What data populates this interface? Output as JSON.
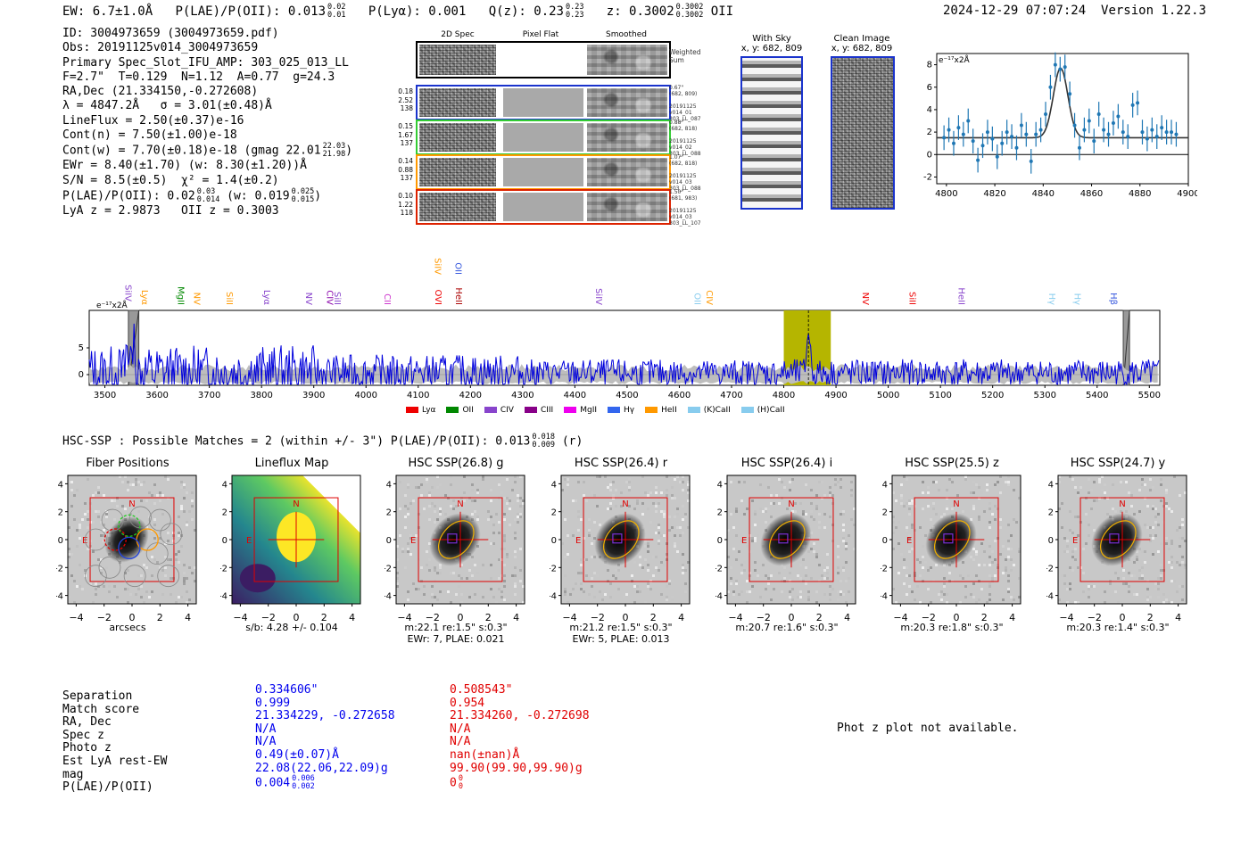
{
  "header": {
    "ew_text": "EW: 6.7±1.0Å",
    "plae_label": "P(LAE)/P(OII): 0.013",
    "plae_up": "0.02",
    "plae_lo": "0.01",
    "plya_text": "P(Lyα): 0.001",
    "qz_label": "Q(z): 0.23",
    "qz_up": "0.23",
    "qz_lo": "0.23",
    "z_label": "z: 0.3002",
    "z_up": "0.3002",
    "z_lo": "0.3002",
    "z_line": "OII",
    "timestamp": "2024-12-29 07:07:24",
    "version": "Version 1.22.3"
  },
  "info": {
    "l1": "ID: 3004973659 (3004973659.pdf)",
    "l2": "Obs: 20191125v014_3004973659",
    "l3": "Primary Spec_Slot_IFU_AMP: 303_025_013_LL",
    "l4": "F=2.7\"  T=0.129  N=1.12  A=0.77  g=24.3",
    "l5": "RA,Dec (21.334150,-0.272608)",
    "l6": "λ = 4847.2Å   σ = 3.01(±0.48)Å",
    "l7": "LineFlux = 2.50(±0.37)e-16",
    "l8": "Cont(n) = 7.50(±1.00)e-18",
    "l9": "Cont(w) = 7.70(±0.18)e-18 (gmag 22.01",
    "l9_up": "22.03",
    "l9_lo": "21.98",
    "l10": "EWr = 8.40(±1.70) (w: 8.30(±1.20))Å",
    "l11": "S/N = 8.5(±0.5)  χ² = 1.4(±0.2)",
    "l12a": "P(LAE)/P(OII): 0.02",
    "l12_up": "0.03",
    "l12_lo": "0.014",
    "l12b": "(w: 0.019",
    "l12b_up": "0.025",
    "l12b_lo": "0.015",
    "l13": "LyA z = 2.9873   OII z = 0.3003"
  },
  "spec2d": {
    "col_headers": [
      "2D Spec",
      "Pixel Flat",
      "Smoothed"
    ],
    "weighted_label": "Weighted\nSum",
    "rows": [
      {
        "left": "0.18\n2.52\n138",
        "right": "0.67\"\n(682, 809)\n\n20191125\nv014_01\n303_LL_087",
        "color": "#1a33cc"
      },
      {
        "left": "0.15\n1.67\n137",
        "right": "0.88\"\n(682, 818)\n\n20191125\nv014_02\n303_LL_088",
        "color": "#33cc33"
      },
      {
        "left": "0.14\n0.88\n137",
        "right": "1.07\"\n(682, 818)\n\n20191125\nv014_03\n303_LL_088",
        "color": "#ff9900"
      },
      {
        "left": "0.10\n1.22\n118",
        "right": "1.50\"\n(681, 983)\n\n20191125\nv014_03\n303_LL_107",
        "color": "#dd2200"
      }
    ]
  },
  "cutouts": {
    "with_sky": "With Sky",
    "with_sky_xy": "x, y: 682, 809",
    "clean": "Clean Image",
    "clean_xy": "x, y: 682, 809"
  },
  "line_fit": {
    "ylabel": "e⁻¹⁷x2Å",
    "xticks": [
      "4800",
      "4820",
      "4840",
      "4860",
      "4880",
      "4900"
    ],
    "yticks": [
      "8",
      "6",
      "4",
      "2",
      "0",
      "-2"
    ],
    "chart_data": {
      "type": "scatter",
      "title": "",
      "xlabel": "",
      "ylabel": "e-17 x2Å",
      "xlim": [
        4796,
        4900
      ],
      "ylim": [
        -2.6,
        9
      ],
      "points": [
        [
          4799,
          1.5
        ],
        [
          4801,
          2.2
        ],
        [
          4803,
          1.0
        ],
        [
          4805,
          2.4
        ],
        [
          4807,
          1.8
        ],
        [
          4809,
          3.0
        ],
        [
          4811,
          1.2
        ],
        [
          4813,
          -0.5
        ],
        [
          4815,
          0.8
        ],
        [
          4817,
          2.0
        ],
        [
          4819,
          1.4
        ],
        [
          4821,
          -0.2
        ],
        [
          4823,
          1.0
        ],
        [
          4825,
          2.0
        ],
        [
          4827,
          1.6
        ],
        [
          4829,
          0.6
        ],
        [
          4831,
          2.6
        ],
        [
          4833,
          1.8
        ],
        [
          4835,
          -0.6
        ],
        [
          4837,
          1.8
        ],
        [
          4839,
          2.2
        ],
        [
          4841,
          3.6
        ],
        [
          4843,
          6.0
        ],
        [
          4845,
          8.0
        ],
        [
          4847,
          7.6
        ],
        [
          4849,
          7.8
        ],
        [
          4851,
          5.4
        ],
        [
          4853,
          2.6
        ],
        [
          4855,
          0.6
        ],
        [
          4857,
          2.2
        ],
        [
          4859,
          3.0
        ],
        [
          4861,
          1.2
        ],
        [
          4863,
          3.6
        ],
        [
          4865,
          2.2
        ],
        [
          4867,
          1.8
        ],
        [
          4869,
          2.8
        ],
        [
          4871,
          3.4
        ],
        [
          4873,
          2.0
        ],
        [
          4875,
          1.6
        ],
        [
          4877,
          4.4
        ],
        [
          4879,
          4.6
        ],
        [
          4881,
          2.0
        ],
        [
          4883,
          1.4
        ],
        [
          4885,
          2.2
        ],
        [
          4887,
          1.6
        ],
        [
          4889,
          2.4
        ],
        [
          4891,
          2.0
        ],
        [
          4893,
          2.0
        ],
        [
          4895,
          1.8
        ]
      ],
      "fit": {
        "center": 4847.2,
        "sigma": 3.01,
        "amplitude": 6.2,
        "continuum": 1.5
      }
    }
  },
  "spectrum": {
    "ylabel": "e⁻¹⁷x2Å",
    "yticks": [
      "5",
      "0"
    ],
    "xticks": [
      "3500",
      "3600",
      "3700",
      "3800",
      "3900",
      "4000",
      "4100",
      "4200",
      "4300",
      "4400",
      "4500",
      "4600",
      "4700",
      "4800",
      "4900",
      "5000",
      "5100",
      "5200",
      "5300",
      "5400",
      "5500"
    ],
    "line_labels": [
      {
        "t": "SiIV",
        "x": 3534,
        "c": "#8844cc",
        "row": 0
      },
      {
        "t": "Lyα",
        "x": 3566,
        "c": "#ff9900",
        "row": 1
      },
      {
        "t": "MgII",
        "x": 3635,
        "c": "#008800",
        "row": 1
      },
      {
        "t": "NV",
        "x": 3666,
        "c": "#ff9900",
        "row": 1
      },
      {
        "t": "SiII",
        "x": 3728,
        "c": "#ff9900",
        "row": 1
      },
      {
        "t": "Lyα",
        "x": 3800,
        "c": "#8844cc",
        "row": 1
      },
      {
        "t": "NV",
        "x": 3880,
        "c": "#8844cc",
        "row": 1
      },
      {
        "t": "CIV",
        "x": 3920,
        "c": "#8800aa",
        "row": 1
      },
      {
        "t": "SiII",
        "x": 3935,
        "c": "#8844cc",
        "row": 1
      },
      {
        "t": "CII",
        "x": 4030,
        "c": "#cc33cc",
        "row": 1
      },
      {
        "t": "OVI",
        "x": 4128,
        "c": "#ee0000",
        "row": 1
      },
      {
        "t": "HeII",
        "x": 4167,
        "c": "#aa0000",
        "row": 1
      },
      {
        "t": "SiIV",
        "x": 4127,
        "c": "#ff9900",
        "row": 2
      },
      {
        "t": "OII",
        "x": 4166,
        "c": "#3355dd",
        "row": 2
      },
      {
        "t": "SiIV",
        "x": 4435,
        "c": "#8844cc",
        "row": 1
      },
      {
        "t": "OII",
        "x": 4624,
        "c": "#88ccee",
        "row": 1
      },
      {
        "t": "CIV",
        "x": 4647,
        "c": "#ff9900",
        "row": 1
      },
      {
        "t": "NV",
        "x": 4946,
        "c": "#ee0000",
        "row": 1
      },
      {
        "t": "SiII",
        "x": 5036,
        "c": "#ee0000",
        "row": 1
      },
      {
        "t": "HeII",
        "x": 5130,
        "c": "#8844cc",
        "row": 1
      },
      {
        "t": "Hγ",
        "x": 5303,
        "c": "#88ccee",
        "row": 1
      },
      {
        "t": "Hγ",
        "x": 5352,
        "c": "#88ccee",
        "row": 1
      },
      {
        "t": "Hβ",
        "x": 5421,
        "c": "#3355dd",
        "row": 1
      }
    ],
    "legend": [
      {
        "t": "Lyα",
        "c": "#ee0000"
      },
      {
        "t": "OII",
        "c": "#008800"
      },
      {
        "t": "CIV",
        "c": "#8844cc"
      },
      {
        "t": "CIII",
        "c": "#880088"
      },
      {
        "t": "MgII",
        "c": "#ee00ee"
      },
      {
        "t": "Hγ",
        "c": "#3366ee"
      },
      {
        "t": "HeII",
        "c": "#ff9900"
      },
      {
        "t": "(K)CaII",
        "c": "#88ccee"
      },
      {
        "t": "(H)CaII",
        "c": "#88ccee"
      }
    ],
    "chart_data": {
      "type": "line",
      "xlim": [
        3470,
        5520
      ],
      "ylim": [
        -2,
        12
      ],
      "highlight_band": [
        4800,
        4890
      ],
      "line_center": 4847.2,
      "masked_bands": [
        [
          3545,
          3565
        ],
        [
          5450,
          5462
        ]
      ]
    }
  },
  "hsc": {
    "summary_label": "HSC-SSP : Possible Matches = 2 (within +/- 3\")  P(LAE)/P(OII): 0.013",
    "summary_up": "0.018",
    "summary_lo": "0.009",
    "summary_band": "(r)",
    "axis_ticks": [
      "4",
      "2",
      "0",
      "-2",
      "-4"
    ],
    "x_ticks": [
      "−4",
      "−2",
      "0",
      "2",
      "4"
    ],
    "panels": [
      {
        "title": "Fiber Positions",
        "sub1": "arcsecs",
        "sub2": "",
        "type": "fiber"
      },
      {
        "title": "Lineflux Map",
        "sub1": "s/b: 4.28 +/- 0.104",
        "sub2": "",
        "type": "flux"
      },
      {
        "title": "HSC SSP(26.8) g",
        "sub1": "m:22.1  re:1.5\"  s:0.3\"",
        "sub2": "EWr: 7, PLAE: 0.021",
        "type": "img"
      },
      {
        "title": "HSC SSP(26.4) r",
        "sub1": "m:21.2  re:1.5\"  s:0.3\"",
        "sub2": "EWr: 5, PLAE: 0.013",
        "type": "img"
      },
      {
        "title": "HSC SSP(26.4) i",
        "sub1": "m:20.7  re:1.6\"  s:0.3\"",
        "sub2": "",
        "type": "img"
      },
      {
        "title": "HSC SSP(25.5) z",
        "sub1": "m:20.3  re:1.8\"  s:0.3\"",
        "sub2": "",
        "type": "img"
      },
      {
        "title": "HSC SSP(24.7) y",
        "sub1": "m:20.3  re:1.4\"  s:0.3\"",
        "sub2": "",
        "type": "img"
      }
    ],
    "compass_n": "N",
    "compass_e": "E"
  },
  "table": {
    "labels": [
      "Separation",
      "Match score",
      "RA, Dec",
      "Spec z",
      "Photo z",
      "Est LyA rest-EW",
      "mag",
      "P(LAE)/P(OII)"
    ],
    "blue": [
      "0.334606\"",
      "0.999",
      "21.334229, -0.272658",
      "N/A",
      "N/A",
      "0.49(±0.07)Å",
      "22.08(22.06,22.09)g",
      "0.004"
    ],
    "blue_up": "0.006",
    "blue_lo": "0.002",
    "red": [
      "0.508543\"",
      "0.954",
      "21.334260, -0.272698",
      "N/A",
      "N/A",
      "nan(±nan)Å",
      "99.90(99.90,99.90)g",
      "0"
    ],
    "red_up": "0",
    "red_lo": "0",
    "photz_note": "Phot z plot not available."
  },
  "colors": {
    "blue": "#0000ee",
    "red": "#e00000",
    "spectrum": "#0000dd",
    "band": "#b5b500"
  }
}
